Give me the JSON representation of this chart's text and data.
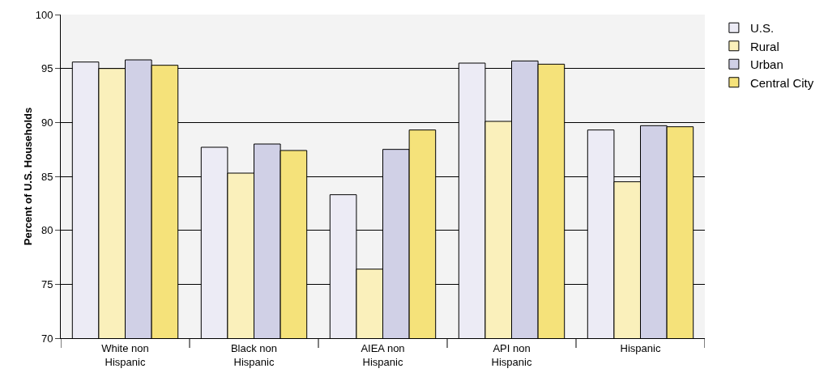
{
  "chart_data": {
    "type": "bar",
    "ylabel": "Percent of U.S. Households",
    "categories": [
      "White non Hispanic",
      "Black non Hispanic",
      "AIEA non Hispanic",
      "API non Hispanic",
      "Hispanic"
    ],
    "series": [
      {
        "name": "U.S.",
        "color": "#ecebf5",
        "values": [
          95.6,
          87.7,
          83.3,
          95.5,
          89.3
        ]
      },
      {
        "name": "Rural",
        "color": "#faf0bb",
        "values": [
          95.0,
          85.3,
          76.4,
          90.1,
          84.5
        ]
      },
      {
        "name": "Urban",
        "color": "#d0d0e6",
        "values": [
          95.8,
          88.0,
          87.5,
          95.7,
          89.7
        ]
      },
      {
        "name": "Central City",
        "color": "#f5e27a",
        "values": [
          95.3,
          87.4,
          89.3,
          95.4,
          89.6
        ]
      }
    ],
    "ylim": [
      70,
      100
    ],
    "yticks": [
      70,
      75,
      80,
      85,
      90,
      95,
      100
    ],
    "grid": "y",
    "legend": "top right"
  }
}
